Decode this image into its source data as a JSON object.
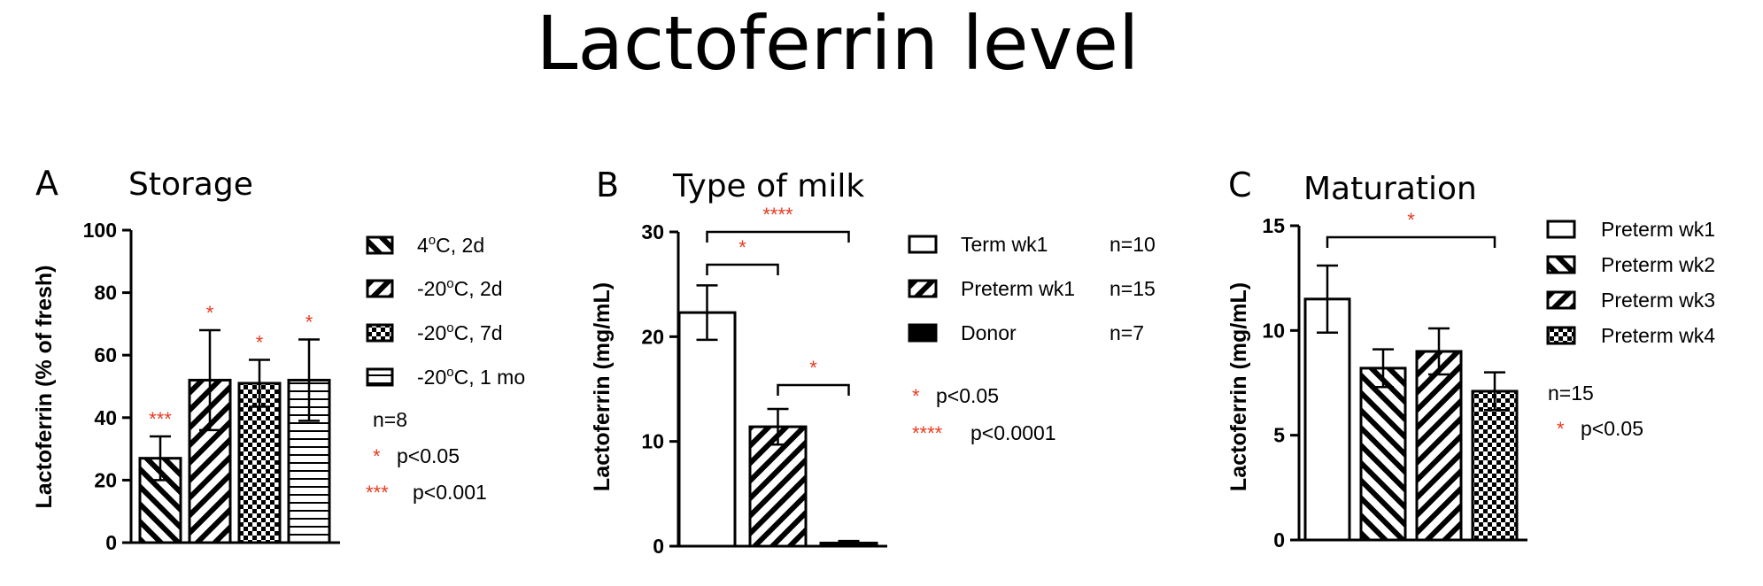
{
  "title": "Lactoferrin level",
  "chart_data": [
    {
      "type": "bar",
      "panel": "A",
      "title": "Storage",
      "ylabel": "Lactoferrin (% of fresh)",
      "ylim": [
        0,
        100
      ],
      "yticks": [
        "0",
        "20",
        "40",
        "60",
        "80",
        "100"
      ],
      "categories": [
        "4°C, 2d",
        "-20°C, 2d",
        "-20°C, 7d",
        "-20°C, 1 mo"
      ],
      "legend": [
        {
          "pre": "4",
          "sup": "o",
          "post": "C, 2d"
        },
        {
          "pre": "-20",
          "sup": "o",
          "post": "C, 2d"
        },
        {
          "pre": "-20",
          "sup": "o",
          "post": "C, 7d"
        },
        {
          "pre": "-20",
          "sup": "o",
          "post": "C, 1 mo"
        }
      ],
      "values": [
        27,
        52,
        51,
        52
      ],
      "errors": [
        7,
        16,
        7.5,
        13
      ],
      "significance": [
        "***",
        "*",
        "*",
        "*"
      ],
      "patterns": [
        "diag-back",
        "diag-fwd",
        "checker",
        "hlines"
      ],
      "notes": [
        {
          "stars": "",
          "text": "n=8"
        },
        {
          "stars": "*",
          "text": "p<0.05"
        },
        {
          "stars": "***",
          "text": "p<0.001"
        }
      ]
    },
    {
      "type": "bar",
      "panel": "B",
      "title": "Type of milk",
      "ylabel": "Lactoferrin (mg/mL)",
      "ylim": [
        0,
        30
      ],
      "yticks": [
        "0",
        "10",
        "20",
        "30"
      ],
      "categories": [
        "Term wk1",
        "Preterm wk1",
        "Donor"
      ],
      "legend": [
        {
          "label": "Term wk1",
          "n": "n=10"
        },
        {
          "label": "Preterm wk1",
          "n": "n=15"
        },
        {
          "label": "Donor",
          "n": "n=7"
        }
      ],
      "values": [
        22.3,
        11.4,
        0.3
      ],
      "errors": [
        2.6,
        1.7,
        0.2
      ],
      "patterns": [
        "white",
        "diag-fwd",
        "solid"
      ],
      "brackets": [
        {
          "from": 0,
          "to": 1,
          "label": "*"
        },
        {
          "from": 0,
          "to": 2,
          "label": "****"
        },
        {
          "from": 1,
          "to": 2,
          "label": "*"
        }
      ],
      "notes": [
        {
          "stars": "*",
          "text": "p<0.05"
        },
        {
          "stars": "****",
          "text": "p<0.0001"
        }
      ]
    },
    {
      "type": "bar",
      "panel": "C",
      "title": "Maturation",
      "ylabel": "Lactoferrin (mg/mL)",
      "ylim": [
        0,
        15
      ],
      "yticks": [
        "0",
        "5",
        "10",
        "15"
      ],
      "categories": [
        "Preterm wk1",
        "Preterm wk2",
        "Preterm wk3",
        "Preterm wk4"
      ],
      "legend": [
        {
          "label": "Preterm wk1"
        },
        {
          "label": "Preterm wk2"
        },
        {
          "label": "Preterm wk3"
        },
        {
          "label": "Preterm wk4"
        }
      ],
      "values": [
        11.5,
        8.2,
        9.0,
        7.1
      ],
      "errors": [
        1.6,
        0.9,
        1.1,
        0.9
      ],
      "patterns": [
        "white",
        "diag-back",
        "diag-fwd",
        "checker"
      ],
      "brackets": [
        {
          "from": 0,
          "to": 3,
          "label": "*"
        }
      ],
      "notes": [
        {
          "stars": "",
          "text": "n=15"
        },
        {
          "stars": "*",
          "text": "p<0.05"
        }
      ]
    }
  ]
}
